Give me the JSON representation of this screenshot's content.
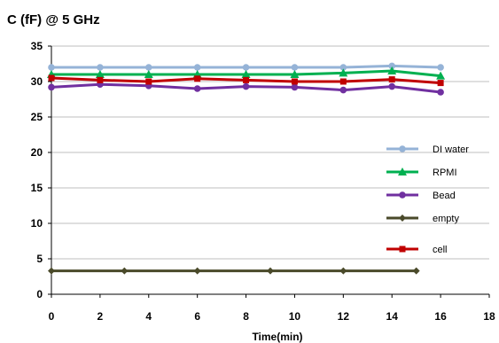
{
  "chart_data": {
    "type": "line",
    "title": "C (fF) @ 5 GHz",
    "xlabel": "Time(min)",
    "ylabel": "",
    "xlim": [
      0,
      18
    ],
    "ylim": [
      0,
      35
    ],
    "xticks": [
      "0",
      "2",
      "4",
      "6",
      "8",
      "10",
      "12",
      "14",
      "16",
      "18"
    ],
    "yticks": [
      "0",
      "5",
      "10",
      "15",
      "20",
      "25",
      "30",
      "35"
    ],
    "grid": "horizontal",
    "legend_position": "right",
    "series": [
      {
        "name": "DI water",
        "color": "#95b3d7",
        "marker": "circle",
        "x": [
          0,
          2,
          4,
          6,
          8,
          10,
          12,
          14,
          16
        ],
        "y": [
          32.0,
          32.0,
          32.0,
          32.0,
          32.0,
          32.0,
          32.0,
          32.2,
          32.0
        ]
      },
      {
        "name": "RPMI",
        "color": "#00b050",
        "marker": "triangle",
        "x": [
          0,
          2,
          4,
          6,
          8,
          10,
          12,
          14,
          16
        ],
        "y": [
          31.0,
          31.0,
          31.0,
          31.0,
          31.0,
          31.0,
          31.2,
          31.5,
          30.8
        ]
      },
      {
        "name": "Bead",
        "color": "#7030a0",
        "marker": "circle",
        "x": [
          0,
          2,
          4,
          6,
          8,
          10,
          12,
          14,
          16
        ],
        "y": [
          29.2,
          29.6,
          29.4,
          29.0,
          29.3,
          29.2,
          28.8,
          29.3,
          28.5
        ]
      },
      {
        "name": "empty",
        "color": "#4a4a2a",
        "marker": "diamond",
        "x": [
          0,
          3,
          6,
          9,
          12,
          15
        ],
        "y": [
          3.3,
          3.3,
          3.3,
          3.3,
          3.3,
          3.3
        ]
      },
      {
        "name": "cell",
        "color": "#c00000",
        "marker": "square",
        "x": [
          0,
          2,
          4,
          6,
          8,
          10,
          12,
          14,
          16
        ],
        "y": [
          30.5,
          30.2,
          30.0,
          30.4,
          30.2,
          30.0,
          30.0,
          30.3,
          29.8
        ]
      }
    ]
  }
}
